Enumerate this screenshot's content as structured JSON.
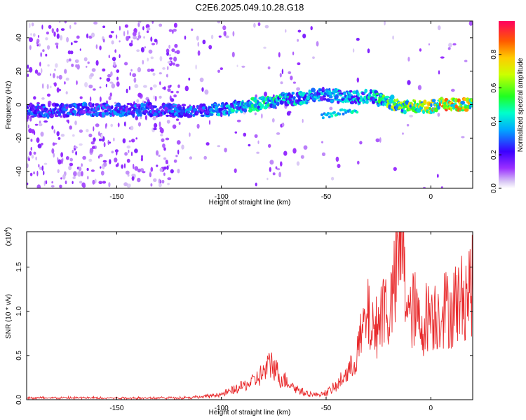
{
  "title": "C2E6.2025.049.10.28.G18",
  "chart_data": [
    {
      "type": "heatmap",
      "xlabel": "Height of straight line (km)",
      "ylabel": "Frequency (Hz)",
      "xlim": [
        -193,
        20
      ],
      "ylim": [
        -50,
        50
      ],
      "xticks": [
        -150,
        -100,
        -50,
        0
      ],
      "yticks": [
        -40,
        -20,
        0,
        20,
        40
      ],
      "colorbar": {
        "label": "Normalized spectral amplitude",
        "range": [
          0,
          1
        ],
        "ticks": [
          "0.0",
          "0.2",
          "0.4",
          "0.6",
          "0.8"
        ],
        "colormap": "rainbow"
      },
      "ridge": {
        "x": [
          -193,
          -170,
          -150,
          -130,
          -110,
          -100,
          -90,
          -80,
          -70,
          -62,
          -55,
          -50,
          -45,
          -40,
          -35,
          -30,
          -27,
          -25,
          -22,
          -18,
          -15,
          -12,
          -8,
          -5,
          0,
          5,
          10,
          15,
          20
        ],
        "y": [
          -4,
          -3,
          -3,
          -3,
          -4,
          -3,
          -1,
          1,
          3,
          4,
          6,
          6,
          5,
          5,
          4,
          5,
          5,
          3,
          3,
          1,
          -1,
          -2,
          -1,
          -1,
          -1,
          0,
          0,
          0,
          0
        ],
        "amplitude": [
          0.35,
          0.35,
          0.35,
          0.35,
          0.4,
          0.45,
          0.5,
          0.55,
          0.5,
          0.5,
          0.45,
          0.4,
          0.45,
          0.45,
          0.5,
          0.5,
          0.5,
          0.6,
          0.7,
          0.75,
          0.7,
          0.75,
          0.8,
          0.85,
          0.9,
          0.92,
          0.95,
          0.9,
          0.85
        ]
      },
      "secondary_branch": {
        "x": [
          -52,
          -45,
          -40,
          -35
        ],
        "y": [
          -7,
          -5,
          -4,
          -3
        ]
      }
    },
    {
      "type": "line",
      "xlabel": "Height of straight line (km)",
      "ylabel": "SNR (10 * v/v)",
      "multiplier_label": "(x10",
      "multiplier_exponent": "4",
      "multiplier_close": ")",
      "xlim": [
        -193,
        20
      ],
      "ylim": [
        0,
        1.9
      ],
      "xticks": [
        -150,
        -100,
        -50,
        0
      ],
      "yticks": [
        "0.0",
        "0.5",
        "1.0",
        "1.5"
      ],
      "line_color": "#e8282a",
      "series": [
        {
          "x": [
            -193,
            -180,
            -160,
            -140,
            -120,
            -110,
            -100,
            -95,
            -90,
            -85,
            -80,
            -76,
            -72,
            -68,
            -64,
            -60,
            -55,
            -50,
            -45,
            -42,
            -38,
            -35,
            -32,
            -30,
            -27,
            -25,
            -22,
            -20,
            -18,
            -16,
            -14,
            -12,
            -10,
            -8,
            -5,
            -2,
            0,
            3,
            6,
            9,
            12,
            15,
            18,
            20
          ],
          "y": [
            0.02,
            0.02,
            0.02,
            0.02,
            0.02,
            0.03,
            0.06,
            0.1,
            0.15,
            0.2,
            0.3,
            0.42,
            0.25,
            0.2,
            0.12,
            0.08,
            0.05,
            0.08,
            0.15,
            0.25,
            0.35,
            0.55,
            0.8,
            0.95,
            0.75,
            0.9,
            1.1,
            0.95,
            1.2,
            1.45,
            1.85,
            1.25,
            0.9,
            1.05,
            0.8,
            0.95,
            1.0,
            0.95,
            1.05,
            1.0,
            1.1,
            1.15,
            1.25,
            1.3
          ]
        }
      ]
    }
  ]
}
